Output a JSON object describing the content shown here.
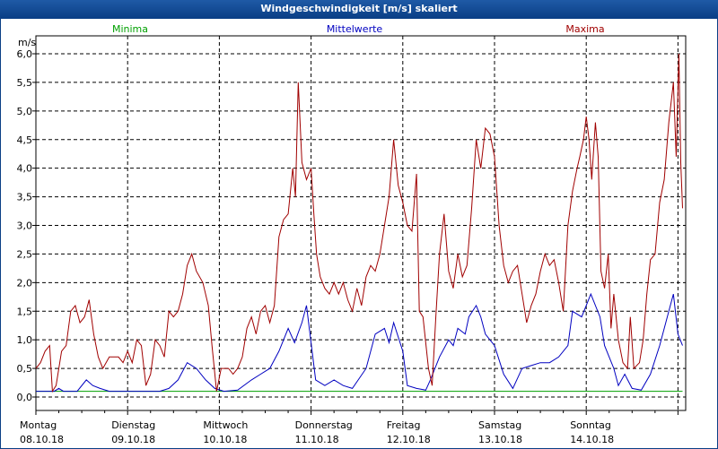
{
  "chart_data": {
    "type": "line",
    "title": "Windgeschwindigkeit [m/s] skaliert",
    "ylabel": "m/s",
    "ylim": [
      -0.2,
      6.2
    ],
    "yticks": [
      {
        "v": 0.0,
        "label": "0,0"
      },
      {
        "v": 0.5,
        "label": "0,5"
      },
      {
        "v": 1.0,
        "label": "1,0"
      },
      {
        "v": 1.5,
        "label": "1,5"
      },
      {
        "v": 2.0,
        "label": "2,0"
      },
      {
        "v": 2.5,
        "label": "2,5"
      },
      {
        "v": 3.0,
        "label": "3,0"
      },
      {
        "v": 3.5,
        "label": "3,5"
      },
      {
        "v": 4.0,
        "label": "4,0"
      },
      {
        "v": 4.5,
        "label": "4,5"
      },
      {
        "v": 5.0,
        "label": "5,0"
      },
      {
        "v": 5.5,
        "label": "5,5"
      },
      {
        "v": 6.0,
        "label": "6,0"
      }
    ],
    "xlim": [
      0,
      7.05
    ],
    "days": [
      {
        "weekday": "Montag",
        "date": "08.10.18"
      },
      {
        "weekday": "Dienstag",
        "date": "09.10.18"
      },
      {
        "weekday": "Mittwoch",
        "date": "10.10.18"
      },
      {
        "weekday": "Donnerstag",
        "date": "11.10.18"
      },
      {
        "weekday": "Freitag",
        "date": "12.10.18"
      },
      {
        "weekday": "Samstag",
        "date": "13.10.18"
      },
      {
        "weekday": "Sonntag",
        "date": "14.10.18"
      }
    ],
    "grid": true,
    "series": [
      {
        "name": "Minima",
        "color": "#00a000",
        "points": [
          [
            0,
            0.1
          ],
          [
            7.05,
            0.1
          ]
        ]
      },
      {
        "name": "Mittelwerte",
        "color": "#0000c0",
        "points": [
          [
            0,
            0.1
          ],
          [
            0.1,
            0.1
          ],
          [
            0.2,
            0.1
          ],
          [
            0.25,
            0.15
          ],
          [
            0.3,
            0.1
          ],
          [
            0.45,
            0.1
          ],
          [
            0.55,
            0.3
          ],
          [
            0.62,
            0.2
          ],
          [
            0.7,
            0.15
          ],
          [
            0.8,
            0.1
          ],
          [
            1.0,
            0.1
          ],
          [
            1.3,
            0.1
          ],
          [
            1.35,
            0.1
          ],
          [
            1.45,
            0.15
          ],
          [
            1.55,
            0.3
          ],
          [
            1.65,
            0.6
          ],
          [
            1.75,
            0.5
          ],
          [
            1.85,
            0.3
          ],
          [
            1.95,
            0.15
          ],
          [
            2.05,
            0.1
          ],
          [
            2.2,
            0.12
          ],
          [
            2.35,
            0.3
          ],
          [
            2.45,
            0.4
          ],
          [
            2.55,
            0.5
          ],
          [
            2.65,
            0.8
          ],
          [
            2.75,
            1.2
          ],
          [
            2.82,
            0.95
          ],
          [
            2.9,
            1.3
          ],
          [
            2.95,
            1.6
          ],
          [
            3.05,
            0.3
          ],
          [
            3.15,
            0.2
          ],
          [
            3.25,
            0.3
          ],
          [
            3.35,
            0.2
          ],
          [
            3.45,
            0.15
          ],
          [
            3.6,
            0.5
          ],
          [
            3.7,
            1.1
          ],
          [
            3.8,
            1.2
          ],
          [
            3.85,
            0.95
          ],
          [
            3.9,
            1.3
          ],
          [
            4.0,
            0.8
          ],
          [
            4.05,
            0.2
          ],
          [
            4.15,
            0.15
          ],
          [
            4.25,
            0.12
          ],
          [
            4.3,
            0.3
          ],
          [
            4.4,
            0.7
          ],
          [
            4.5,
            1.0
          ],
          [
            4.55,
            0.9
          ],
          [
            4.6,
            1.2
          ],
          [
            4.68,
            1.1
          ],
          [
            4.72,
            1.4
          ],
          [
            4.8,
            1.6
          ],
          [
            4.85,
            1.4
          ],
          [
            4.9,
            1.1
          ],
          [
            5.0,
            0.9
          ],
          [
            5.1,
            0.4
          ],
          [
            5.2,
            0.15
          ],
          [
            5.3,
            0.5
          ],
          [
            5.4,
            0.55
          ],
          [
            5.5,
            0.6
          ],
          [
            5.6,
            0.6
          ],
          [
            5.7,
            0.7
          ],
          [
            5.8,
            0.9
          ],
          [
            5.85,
            1.5
          ],
          [
            5.95,
            1.4
          ],
          [
            6.05,
            1.8
          ],
          [
            6.15,
            1.4
          ],
          [
            6.2,
            0.9
          ],
          [
            6.3,
            0.5
          ],
          [
            6.35,
            0.2
          ],
          [
            6.42,
            0.4
          ],
          [
            6.5,
            0.15
          ],
          [
            6.6,
            0.12
          ],
          [
            6.7,
            0.4
          ],
          [
            6.8,
            0.9
          ],
          [
            6.9,
            1.5
          ],
          [
            6.95,
            1.8
          ],
          [
            7.0,
            1.1
          ],
          [
            7.05,
            0.9
          ]
        ]
      },
      {
        "name": "Maxima",
        "color": "#a00000",
        "points": [
          [
            0,
            0.5
          ],
          [
            0.05,
            0.6
          ],
          [
            0.1,
            0.8
          ],
          [
            0.15,
            0.9
          ],
          [
            0.18,
            0.1
          ],
          [
            0.22,
            0.2
          ],
          [
            0.28,
            0.8
          ],
          [
            0.33,
            0.9
          ],
          [
            0.38,
            1.5
          ],
          [
            0.43,
            1.6
          ],
          [
            0.48,
            1.3
          ],
          [
            0.53,
            1.4
          ],
          [
            0.58,
            1.7
          ],
          [
            0.63,
            1.1
          ],
          [
            0.68,
            0.7
          ],
          [
            0.73,
            0.5
          ],
          [
            0.8,
            0.7
          ],
          [
            0.9,
            0.7
          ],
          [
            0.95,
            0.6
          ],
          [
            1.0,
            0.8
          ],
          [
            1.05,
            0.6
          ],
          [
            1.1,
            1.0
          ],
          [
            1.15,
            0.9
          ],
          [
            1.2,
            0.2
          ],
          [
            1.25,
            0.4
          ],
          [
            1.3,
            1.0
          ],
          [
            1.35,
            0.9
          ],
          [
            1.4,
            0.7
          ],
          [
            1.45,
            1.5
          ],
          [
            1.5,
            1.4
          ],
          [
            1.55,
            1.5
          ],
          [
            1.6,
            1.8
          ],
          [
            1.65,
            2.3
          ],
          [
            1.7,
            2.5
          ],
          [
            1.75,
            2.2
          ],
          [
            1.82,
            2.0
          ],
          [
            1.88,
            1.6
          ],
          [
            1.92,
            0.9
          ],
          [
            1.97,
            0.1
          ],
          [
            2.02,
            0.5
          ],
          [
            2.1,
            0.5
          ],
          [
            2.15,
            0.4
          ],
          [
            2.2,
            0.5
          ],
          [
            2.25,
            0.7
          ],
          [
            2.3,
            1.2
          ],
          [
            2.35,
            1.4
          ],
          [
            2.4,
            1.1
          ],
          [
            2.45,
            1.5
          ],
          [
            2.5,
            1.6
          ],
          [
            2.55,
            1.3
          ],
          [
            2.6,
            1.6
          ],
          [
            2.65,
            2.8
          ],
          [
            2.7,
            3.1
          ],
          [
            2.75,
            3.2
          ],
          [
            2.8,
            4.0
          ],
          [
            2.83,
            3.5
          ],
          [
            2.86,
            5.5
          ],
          [
            2.9,
            4.1
          ],
          [
            2.95,
            3.8
          ],
          [
            3.0,
            4.0
          ],
          [
            3.03,
            3.2
          ],
          [
            3.06,
            2.5
          ],
          [
            3.1,
            2.1
          ],
          [
            3.15,
            1.9
          ],
          [
            3.2,
            1.8
          ],
          [
            3.25,
            2.0
          ],
          [
            3.3,
            1.8
          ],
          [
            3.35,
            2.0
          ],
          [
            3.4,
            1.7
          ],
          [
            3.45,
            1.5
          ],
          [
            3.5,
            1.9
          ],
          [
            3.55,
            1.6
          ],
          [
            3.6,
            2.1
          ],
          [
            3.65,
            2.3
          ],
          [
            3.7,
            2.2
          ],
          [
            3.75,
            2.5
          ],
          [
            3.8,
            3.0
          ],
          [
            3.85,
            3.5
          ],
          [
            3.9,
            4.5
          ],
          [
            3.95,
            3.7
          ],
          [
            4.0,
            3.4
          ],
          [
            4.05,
            3.0
          ],
          [
            4.1,
            2.9
          ],
          [
            4.15,
            3.9
          ],
          [
            4.18,
            1.5
          ],
          [
            4.22,
            1.4
          ],
          [
            4.28,
            0.5
          ],
          [
            4.32,
            0.2
          ],
          [
            4.36,
            1.4
          ],
          [
            4.4,
            2.5
          ],
          [
            4.45,
            3.2
          ],
          [
            4.5,
            2.2
          ],
          [
            4.55,
            1.9
          ],
          [
            4.6,
            2.5
          ],
          [
            4.65,
            2.1
          ],
          [
            4.7,
            2.3
          ],
          [
            4.75,
            3.3
          ],
          [
            4.8,
            4.5
          ],
          [
            4.85,
            4.0
          ],
          [
            4.9,
            4.7
          ],
          [
            4.95,
            4.6
          ],
          [
            5.0,
            4.2
          ],
          [
            5.05,
            3.0
          ],
          [
            5.1,
            2.3
          ],
          [
            5.15,
            2.0
          ],
          [
            5.2,
            2.2
          ],
          [
            5.25,
            2.3
          ],
          [
            5.3,
            1.8
          ],
          [
            5.35,
            1.3
          ],
          [
            5.4,
            1.6
          ],
          [
            5.45,
            1.8
          ],
          [
            5.5,
            2.2
          ],
          [
            5.55,
            2.5
          ],
          [
            5.6,
            2.3
          ],
          [
            5.65,
            2.4
          ],
          [
            5.7,
            2.0
          ],
          [
            5.75,
            1.5
          ],
          [
            5.8,
            3.0
          ],
          [
            5.85,
            3.6
          ],
          [
            5.9,
            4.0
          ],
          [
            5.93,
            4.2
          ],
          [
            5.97,
            4.5
          ],
          [
            6.0,
            4.9
          ],
          [
            6.03,
            4.5
          ],
          [
            6.06,
            3.8
          ],
          [
            6.1,
            4.8
          ],
          [
            6.13,
            4.2
          ],
          [
            6.16,
            2.2
          ],
          [
            6.2,
            1.9
          ],
          [
            6.24,
            2.5
          ],
          [
            6.27,
            1.2
          ],
          [
            6.3,
            1.8
          ],
          [
            6.35,
            1.0
          ],
          [
            6.4,
            0.6
          ],
          [
            6.45,
            0.5
          ],
          [
            6.48,
            1.4
          ],
          [
            6.52,
            0.5
          ],
          [
            6.58,
            0.6
          ],
          [
            6.62,
            1.0
          ],
          [
            6.66,
            1.8
          ],
          [
            6.7,
            2.4
          ],
          [
            6.75,
            2.5
          ],
          [
            6.8,
            3.4
          ],
          [
            6.85,
            3.8
          ],
          [
            6.9,
            4.8
          ],
          [
            6.95,
            5.5
          ],
          [
            6.98,
            4.2
          ],
          [
            7.01,
            6.0
          ],
          [
            7.03,
            4.1
          ],
          [
            7.05,
            3.3
          ]
        ]
      }
    ]
  }
}
